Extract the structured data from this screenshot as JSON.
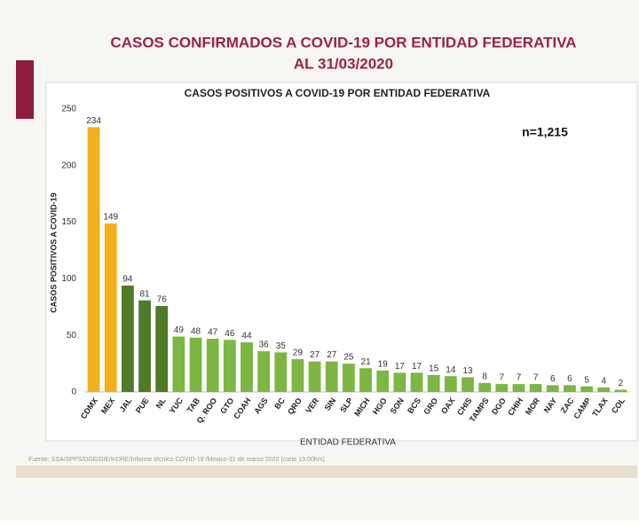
{
  "header": {
    "title_lines": [
      "CASOS CONFIRMADOS A COVID-19 POR ENTIDAD FEDERATIVA",
      "AL 31/03/2020"
    ]
  },
  "chart_data": {
    "type": "bar",
    "title": "CASOS POSITIVOS A COVID-19 POR ENTIDAD FEDERATIVA",
    "x_label": "ENTIDAD FEDERATIVA",
    "y_label": "CASOS POSITIVOS A COVID-19",
    "annotation": "n=1,215",
    "categories": [
      "CDMX",
      "MEX",
      "JAL",
      "PUE",
      "NL",
      "YUC",
      "TAB",
      "Q. ROO",
      "GTO",
      "COAH",
      "AGS",
      "BC",
      "QRO",
      "VER",
      "SIN",
      "SLP",
      "MICH",
      "HGO",
      "SON",
      "BCS",
      "GRO",
      "OAX",
      "CHIS",
      "TAMPS",
      "DGO",
      "CHIH",
      "MOR",
      "NAY",
      "ZAC",
      "CAMP",
      "TLAX",
      "COL"
    ],
    "values": [
      234,
      149,
      94,
      81,
      76,
      49,
      48,
      47,
      46,
      44,
      36,
      35,
      29,
      27,
      27,
      25,
      21,
      19,
      17,
      17,
      15,
      14,
      13,
      8,
      7,
      7,
      7,
      6,
      6,
      5,
      4,
      2
    ],
    "colors": [
      "#f2b01e",
      "#f2b01e",
      "#4f7a28",
      "#4f7a28",
      "#4f7a28",
      "#7db643",
      "#7db643",
      "#7db643",
      "#7db643",
      "#7db643",
      "#7db643",
      "#7db643",
      "#7db643",
      "#7db643",
      "#7db643",
      "#7db643",
      "#7db643",
      "#7db643",
      "#7db643",
      "#7db643",
      "#7db643",
      "#7db643",
      "#7db643",
      "#7db643",
      "#7db643",
      "#7db643",
      "#7db643",
      "#7db643",
      "#7db643",
      "#7db643",
      "#7db643",
      "#7db643"
    ],
    "ylim": [
      0,
      250
    ],
    "yticks": [
      0,
      50,
      100,
      150,
      200,
      250
    ],
    "grid": false
  },
  "footer": {
    "source": "Fuente: SSA/SPPS/DGE/DIE/InDRE/Informe técnico.COVID-19 /Mexico-31 de marzo 2020 (corte 13:00hrs)"
  }
}
